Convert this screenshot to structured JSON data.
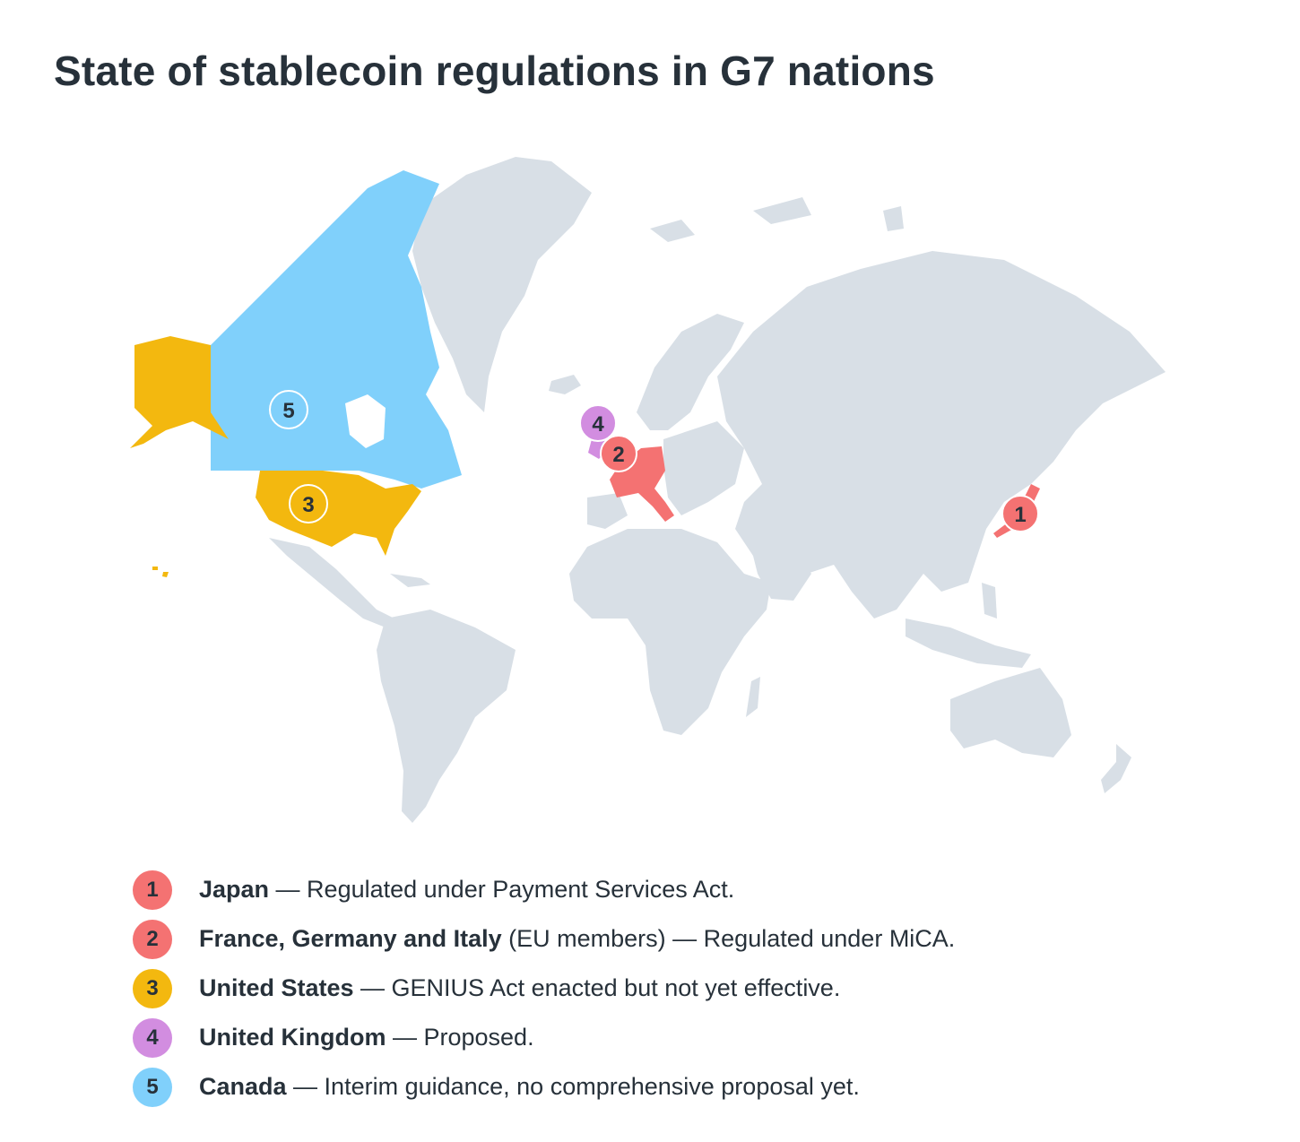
{
  "title": "State of stablecoin regulations in G7 nations",
  "colors": {
    "land": "#d8dfe6",
    "japan_eu": "#f47272",
    "united_states": "#f3b80f",
    "united_kingdom": "#d28de0",
    "canada": "#80d0fb",
    "text": "#27313a"
  },
  "markers": [
    {
      "number": "1",
      "country": "Japan"
    },
    {
      "number": "2",
      "country": "France, Germany and Italy"
    },
    {
      "number": "3",
      "country": "United States"
    },
    {
      "number": "4",
      "country": "United Kingdom"
    },
    {
      "number": "5",
      "country": "Canada"
    }
  ],
  "legend": [
    {
      "number": "1",
      "name": "Japan",
      "qualifier": "",
      "status": " — Regulated under Payment Services Act."
    },
    {
      "number": "2",
      "name": "France, Germany and Italy",
      "qualifier": " (EU members)",
      "status": " — Regulated under MiCA."
    },
    {
      "number": "3",
      "name": "United States",
      "qualifier": "",
      "status": " — GENIUS Act enacted but not yet effective."
    },
    {
      "number": "4",
      "name": "United Kingdom",
      "qualifier": "",
      "status": " — Proposed."
    },
    {
      "number": "5",
      "name": "Canada",
      "qualifier": "",
      "status": " — Interim guidance, no comprehensive proposal yet."
    }
  ]
}
